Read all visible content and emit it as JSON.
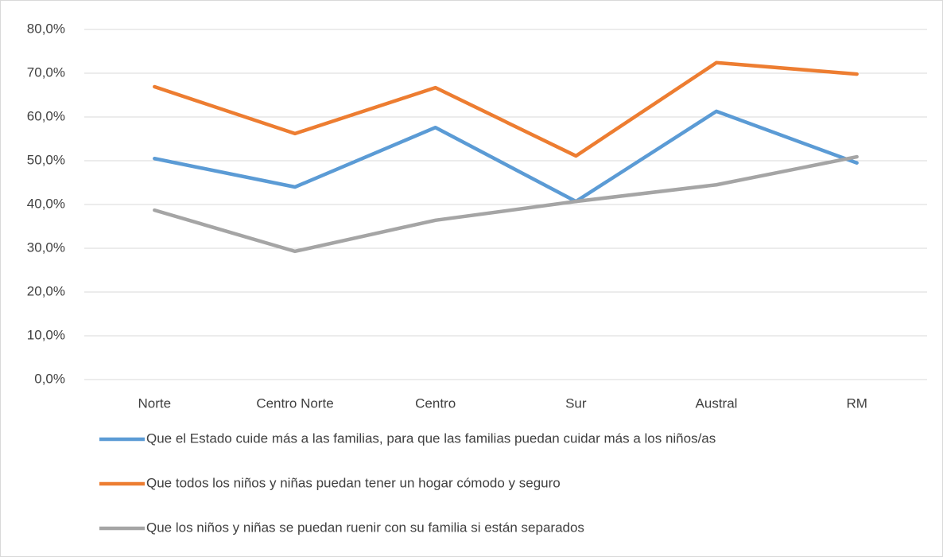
{
  "chart_data": {
    "type": "line",
    "categories": [
      "Norte",
      "Centro Norte",
      "Centro",
      "Sur",
      "Austral",
      "RM"
    ],
    "series": [
      {
        "name": "Que el Estado cuide más a las familias, para que las familias puedan cuidar más a los niños/as",
        "color": "#5b9bd5",
        "values": [
          50.5,
          44.0,
          57.6,
          40.7,
          61.3,
          49.5
        ]
      },
      {
        "name": "Que todos los niños y niñas puedan tener un hogar cómodo y seguro",
        "color": "#ed7d31",
        "values": [
          66.9,
          56.2,
          66.7,
          51.1,
          72.4,
          69.8
        ]
      },
      {
        "name": "Que los niños y niñas se puedan ruenir con su familia si están separados",
        "color": "#a5a5a5",
        "values": [
          38.7,
          29.3,
          36.4,
          40.7,
          44.5,
          50.9
        ]
      }
    ],
    "ylim": [
      0,
      80
    ],
    "yticks": [
      {
        "value": 0,
        "label": "0,0%"
      },
      {
        "value": 10,
        "label": "10,0%"
      },
      {
        "value": 20,
        "label": "20,0%"
      },
      {
        "value": 30,
        "label": "30,0%"
      },
      {
        "value": 40,
        "label": "40,0%"
      },
      {
        "value": 50,
        "label": "50,0%"
      },
      {
        "value": 60,
        "label": "60,0%"
      },
      {
        "value": 70,
        "label": "70,0%"
      },
      {
        "value": 80,
        "label": "80,0%"
      }
    ],
    "grid": true,
    "legend": "bottom"
  }
}
